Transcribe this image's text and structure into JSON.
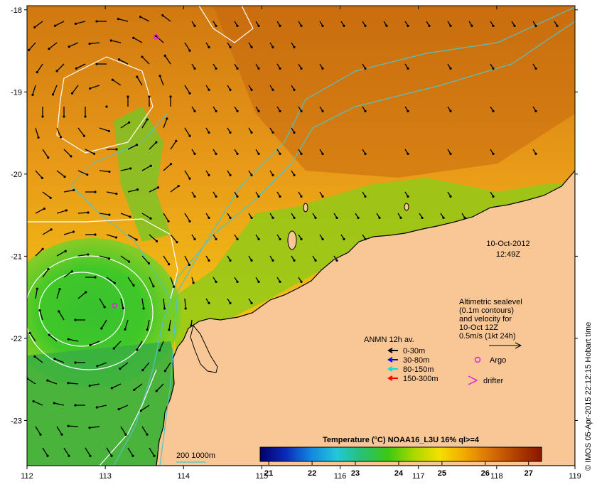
{
  "map": {
    "lon_range": [
      112,
      119
    ],
    "lat_range": [
      -23.55,
      -17.95
    ],
    "x_ticks": [
      "112",
      "113",
      "114",
      "115",
      "116",
      "117",
      "118",
      "119"
    ],
    "y_ticks": [
      "-18",
      "-19",
      "-20",
      "-21",
      "-22",
      "-23"
    ],
    "datetime": {
      "date": "10-Oct-2012",
      "time": "12:49Z"
    },
    "colors": {
      "land": "#f9c796",
      "warm_sst": "#c85f10",
      "mid_sst": "#f0a820",
      "cool_sst": "#2eb82e",
      "contour_sealevel": "#ffffff",
      "isobath": "#4fc4c8"
    }
  },
  "altimetry": {
    "lines": [
      "Altimetric sealevel",
      "(0.1m contours)",
      "and velocity for",
      "10-Oct 12Z",
      "0.5m/s (1kt 24h)"
    ]
  },
  "mooring_legend": {
    "title": "ANMN 12h av.",
    "items": [
      {
        "label": "0-30m",
        "color": "#000000"
      },
      {
        "label": "30-80m",
        "color": "#0000ff"
      },
      {
        "label": "80-150m",
        "color": "#00e0e0"
      },
      {
        "label": "150-300m",
        "color": "#ff0000"
      }
    ]
  },
  "markers": {
    "argo_label": "Argo",
    "argo_color": "#e020e0",
    "drifter_label": "drifter",
    "drifter_color": "#e020e0",
    "argo_floats": [
      {
        "lon": 113.65,
        "lat": -18.33
      },
      {
        "lon": 113.12,
        "lat": -21.6
      }
    ]
  },
  "isobath_label": "200  1000m",
  "colorbar": {
    "title": "Temperature (°C) NOAA16_L3U 16% ql>=4",
    "ticks": [
      "21",
      "22",
      "23",
      "24",
      "25",
      "26",
      "27"
    ],
    "range": [
      20.8,
      27.3
    ],
    "stops": [
      "#00006a",
      "#0a2ab8",
      "#1288e0",
      "#22c8d8",
      "#28c070",
      "#3cc814",
      "#a8d800",
      "#f4e000",
      "#f4a800",
      "#d87008",
      "#b04000",
      "#8a1400"
    ]
  },
  "credit": "© IMOS 05-Apr-2015 22:12:15 Hobart time"
}
